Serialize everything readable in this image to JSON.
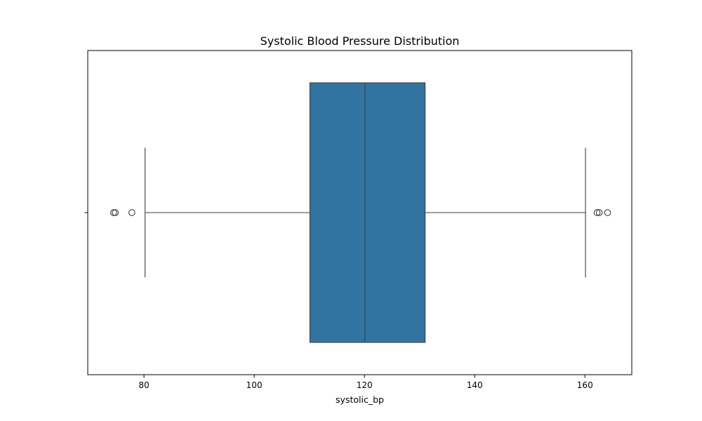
{
  "chart_data": {
    "type": "boxplot",
    "title": "Systolic Blood Pressure Distribution",
    "xlabel": "systolic_bp",
    "ylabel": "",
    "xlim": [
      69.8,
      168.5
    ],
    "xticks": [
      80,
      100,
      120,
      140,
      160
    ],
    "xtick_labels": [
      "80",
      "100",
      "120",
      "140",
      "160"
    ],
    "grid": false,
    "box": {
      "whisker_low": 80.2,
      "q1": 110.1,
      "median": 120.1,
      "q3": 131.0,
      "whisker_high": 160.1,
      "outliers": [
        74.5,
        74.8,
        77.8,
        162.2,
        162.6,
        164.1
      ]
    },
    "colors": {
      "box_fill": "#3274a1",
      "line": "#3d3d3d",
      "axis": "#000000",
      "outlier_edge": "#3d3d3d"
    }
  }
}
